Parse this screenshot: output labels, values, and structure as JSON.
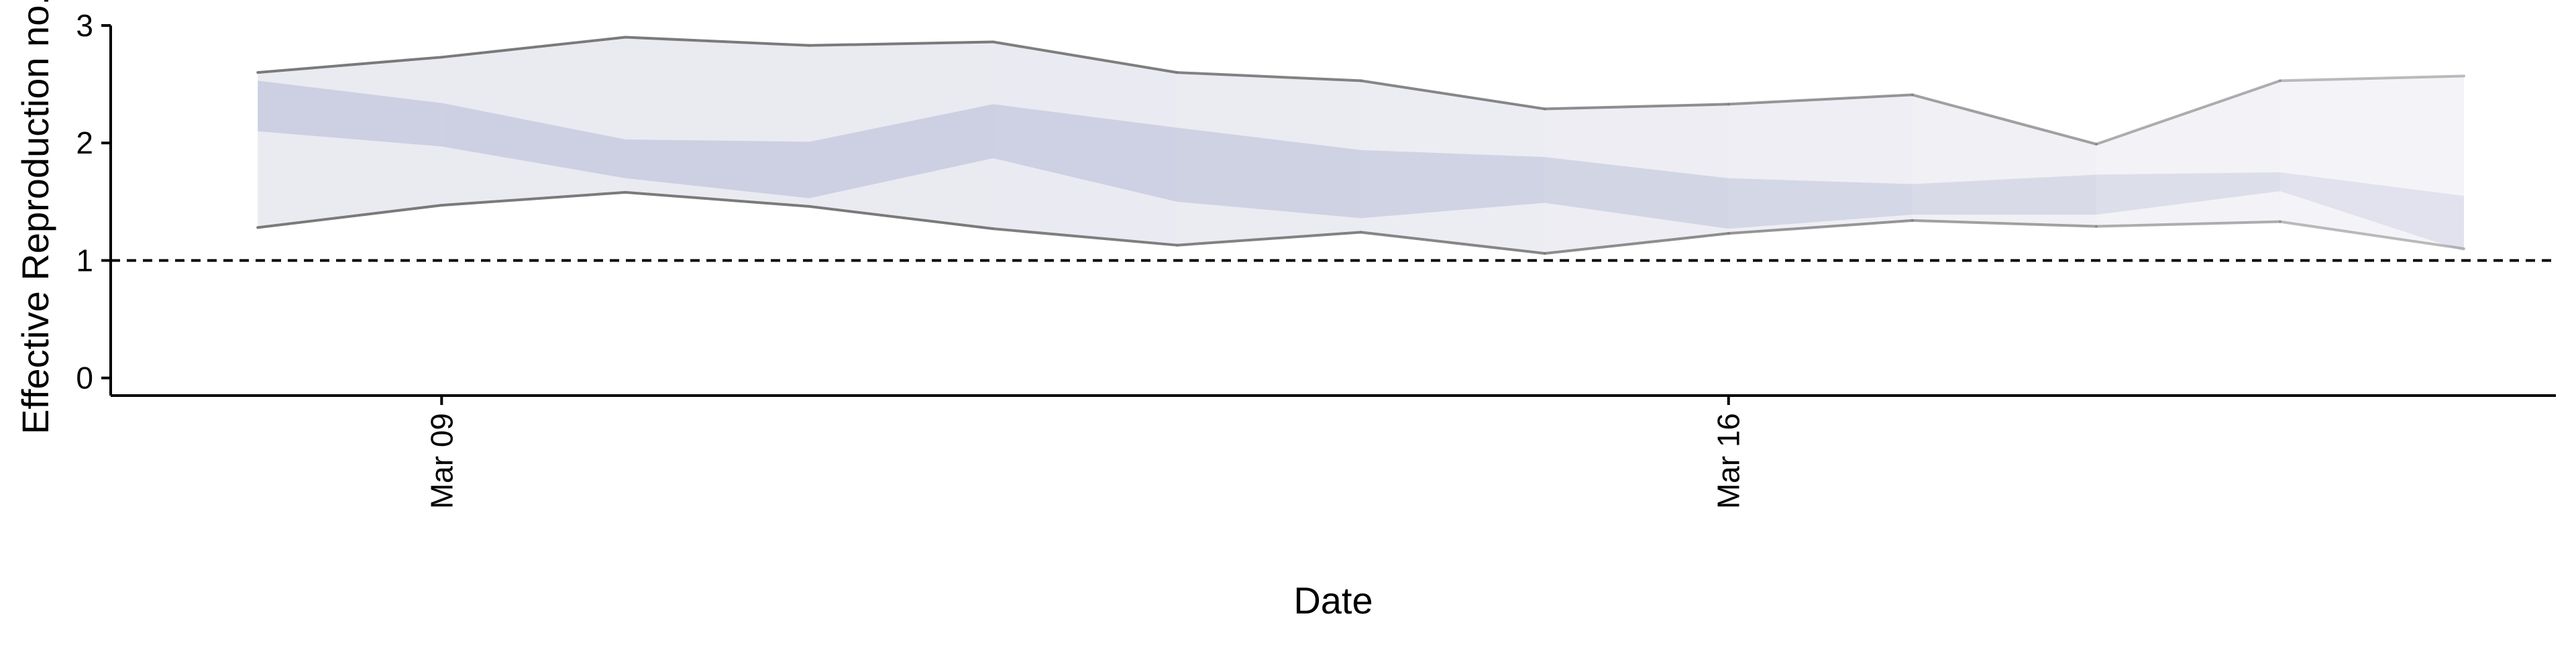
{
  "chart_data": {
    "type": "area",
    "title": "",
    "xlabel": "Date",
    "ylabel": "Effective Reproduction no.",
    "x_ticks": [
      {
        "label": "Mar 09",
        "day": 9
      },
      {
        "label": "Mar 16",
        "day": 16
      }
    ],
    "y_ticks": [
      0,
      1,
      2,
      3
    ],
    "ylim": [
      -0.15,
      3.0
    ],
    "xlim_days": [
      7.2,
      20.5
    ],
    "reference_line": {
      "y": 1,
      "style": "dashed"
    },
    "x_days": [
      8,
      9,
      10,
      11,
      12,
      13,
      14,
      15,
      16,
      17,
      18,
      19,
      20
    ],
    "series": [
      {
        "role": "outer_interval",
        "upper": [
          2.6,
          2.73,
          2.9,
          2.83,
          2.86,
          2.6,
          2.53,
          2.29,
          2.33,
          2.41,
          1.99,
          2.53,
          2.57
        ],
        "lower": [
          1.28,
          1.47,
          1.58,
          1.46,
          1.27,
          1.13,
          1.24,
          1.06,
          1.23,
          1.34,
          1.29,
          1.33,
          1.1
        ]
      },
      {
        "role": "inner_interval",
        "upper": [
          2.53,
          2.34,
          2.03,
          2.01,
          2.33,
          2.13,
          1.94,
          1.88,
          1.7,
          1.65,
          1.73,
          1.75,
          1.55
        ],
        "lower": [
          2.1,
          1.97,
          1.7,
          1.53,
          1.87,
          1.5,
          1.36,
          1.49,
          1.27,
          1.39,
          1.39,
          1.59,
          1.08
        ]
      }
    ],
    "colors": {
      "outer_fill": "#e6e6ef",
      "inner_fill": "#c9cde0",
      "bound_line": "#7a7a7a",
      "reference_line": "#000000",
      "axis": "#000000"
    },
    "fade": [
      1.0,
      1.0,
      1.0,
      1.0,
      0.97,
      0.94,
      0.9,
      0.85,
      0.78,
      0.7,
      0.6,
      0.5,
      0.42
    ]
  }
}
